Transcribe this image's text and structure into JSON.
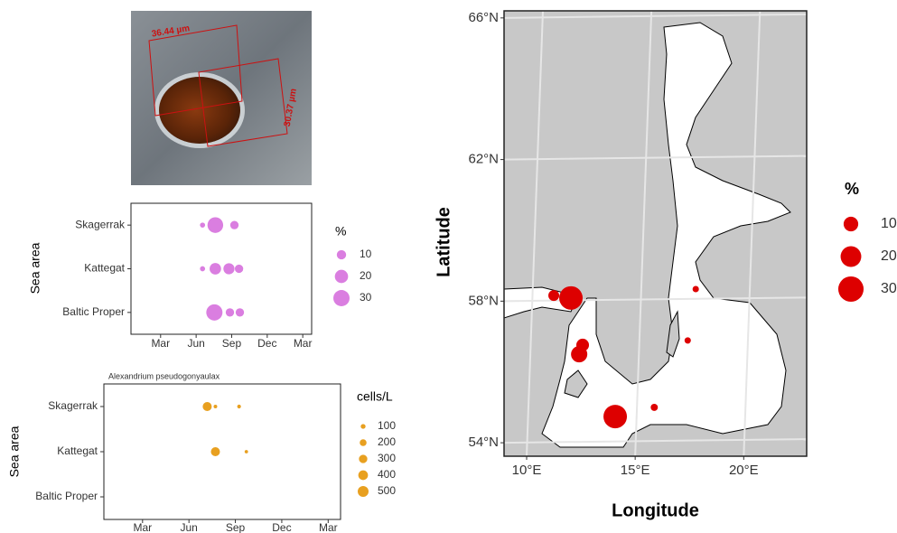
{
  "photo": {
    "labels": [
      "36.44 µm",
      "30.37 µm"
    ]
  },
  "chart_data": [
    {
      "type": "bubble",
      "ylabel": "Sea area",
      "categories": [
        "Skagerrak",
        "Kattegat",
        "Baltic Proper"
      ],
      "xlim": [
        0.5,
        15.75
      ],
      "xticks": [
        {
          "value": 3,
          "label": "Mar"
        },
        {
          "value": 6,
          "label": "Jun"
        },
        {
          "value": 9,
          "label": "Sep"
        },
        {
          "value": 12,
          "label": "Dec"
        },
        {
          "value": 15,
          "label": "Mar"
        }
      ],
      "x": [
        6.54,
        7.62,
        9.23,
        6.54,
        7.62,
        8.77,
        9.62,
        7.54,
        8.85,
        9.69
      ],
      "y": [
        "Skagerrak",
        "Skagerrak",
        "Skagerrak",
        "Kattegat",
        "Kattegat",
        "Kattegat",
        "Kattegat",
        "Baltic Proper",
        "Baltic Proper",
        "Baltic Proper"
      ],
      "size": [
        3,
        28,
        8,
        3,
        15,
        14,
        8,
        30,
        8,
        8
      ],
      "color": "#da7ee0",
      "size_legend": {
        "title": "%",
        "values": [
          10,
          20,
          30
        ]
      }
    },
    {
      "type": "bubble",
      "title": "Alexandrium pseudogonyaulax",
      "ylabel": "Sea area",
      "categories": [
        "Skagerrak",
        "Kattegat",
        "Baltic Proper"
      ],
      "xlim": [
        0.5,
        15.8
      ],
      "xticks": [
        {
          "value": 3,
          "label": "Mar"
        },
        {
          "value": 6,
          "label": "Jun"
        },
        {
          "value": 9,
          "label": "Sep"
        },
        {
          "value": 12,
          "label": "Dec"
        },
        {
          "value": 15,
          "label": "Mar"
        }
      ],
      "x": [
        7.18,
        7.71,
        9.24,
        7.71,
        9.71
      ],
      "y": [
        "Skagerrak",
        "Skagerrak",
        "Skagerrak",
        "Kattegat",
        "Kattegat"
      ],
      "size": [
        350,
        56,
        60,
        350,
        50
      ],
      "color": "#e8a020",
      "size_legend": {
        "title": "cells/L",
        "values": [
          100,
          200,
          300,
          400,
          500
        ]
      }
    },
    {
      "type": "map",
      "xlabel": "Longitude",
      "ylabel": "Latitude",
      "xlim": [
        8.96,
        22.9
      ],
      "ylim": [
        53.62,
        66.2
      ],
      "xticks": [
        {
          "value": 10,
          "label": "10°E"
        },
        {
          "value": 15,
          "label": "15°E"
        },
        {
          "value": 20,
          "label": "20°E"
        }
      ],
      "yticks": [
        {
          "value": 54,
          "label": "54°N"
        },
        {
          "value": 58,
          "label": "58°N"
        },
        {
          "value": 62,
          "label": "62°N"
        },
        {
          "value": 66,
          "label": "66°N"
        }
      ],
      "x": [
        11.25,
        12.04,
        12.58,
        12.42,
        14.08,
        15.88,
        17.42,
        17.79
      ],
      "y": [
        58.16,
        58.09,
        56.76,
        56.5,
        54.74,
        55.0,
        56.89,
        58.34
      ],
      "size": [
        5.5,
        25.8,
        7.5,
        12.4,
        25.8,
        2.4,
        1.9,
        1.9
      ],
      "color": "#dd0000",
      "grid": true,
      "size_legend": {
        "title": "%",
        "values": [
          10,
          20,
          30
        ]
      }
    }
  ]
}
